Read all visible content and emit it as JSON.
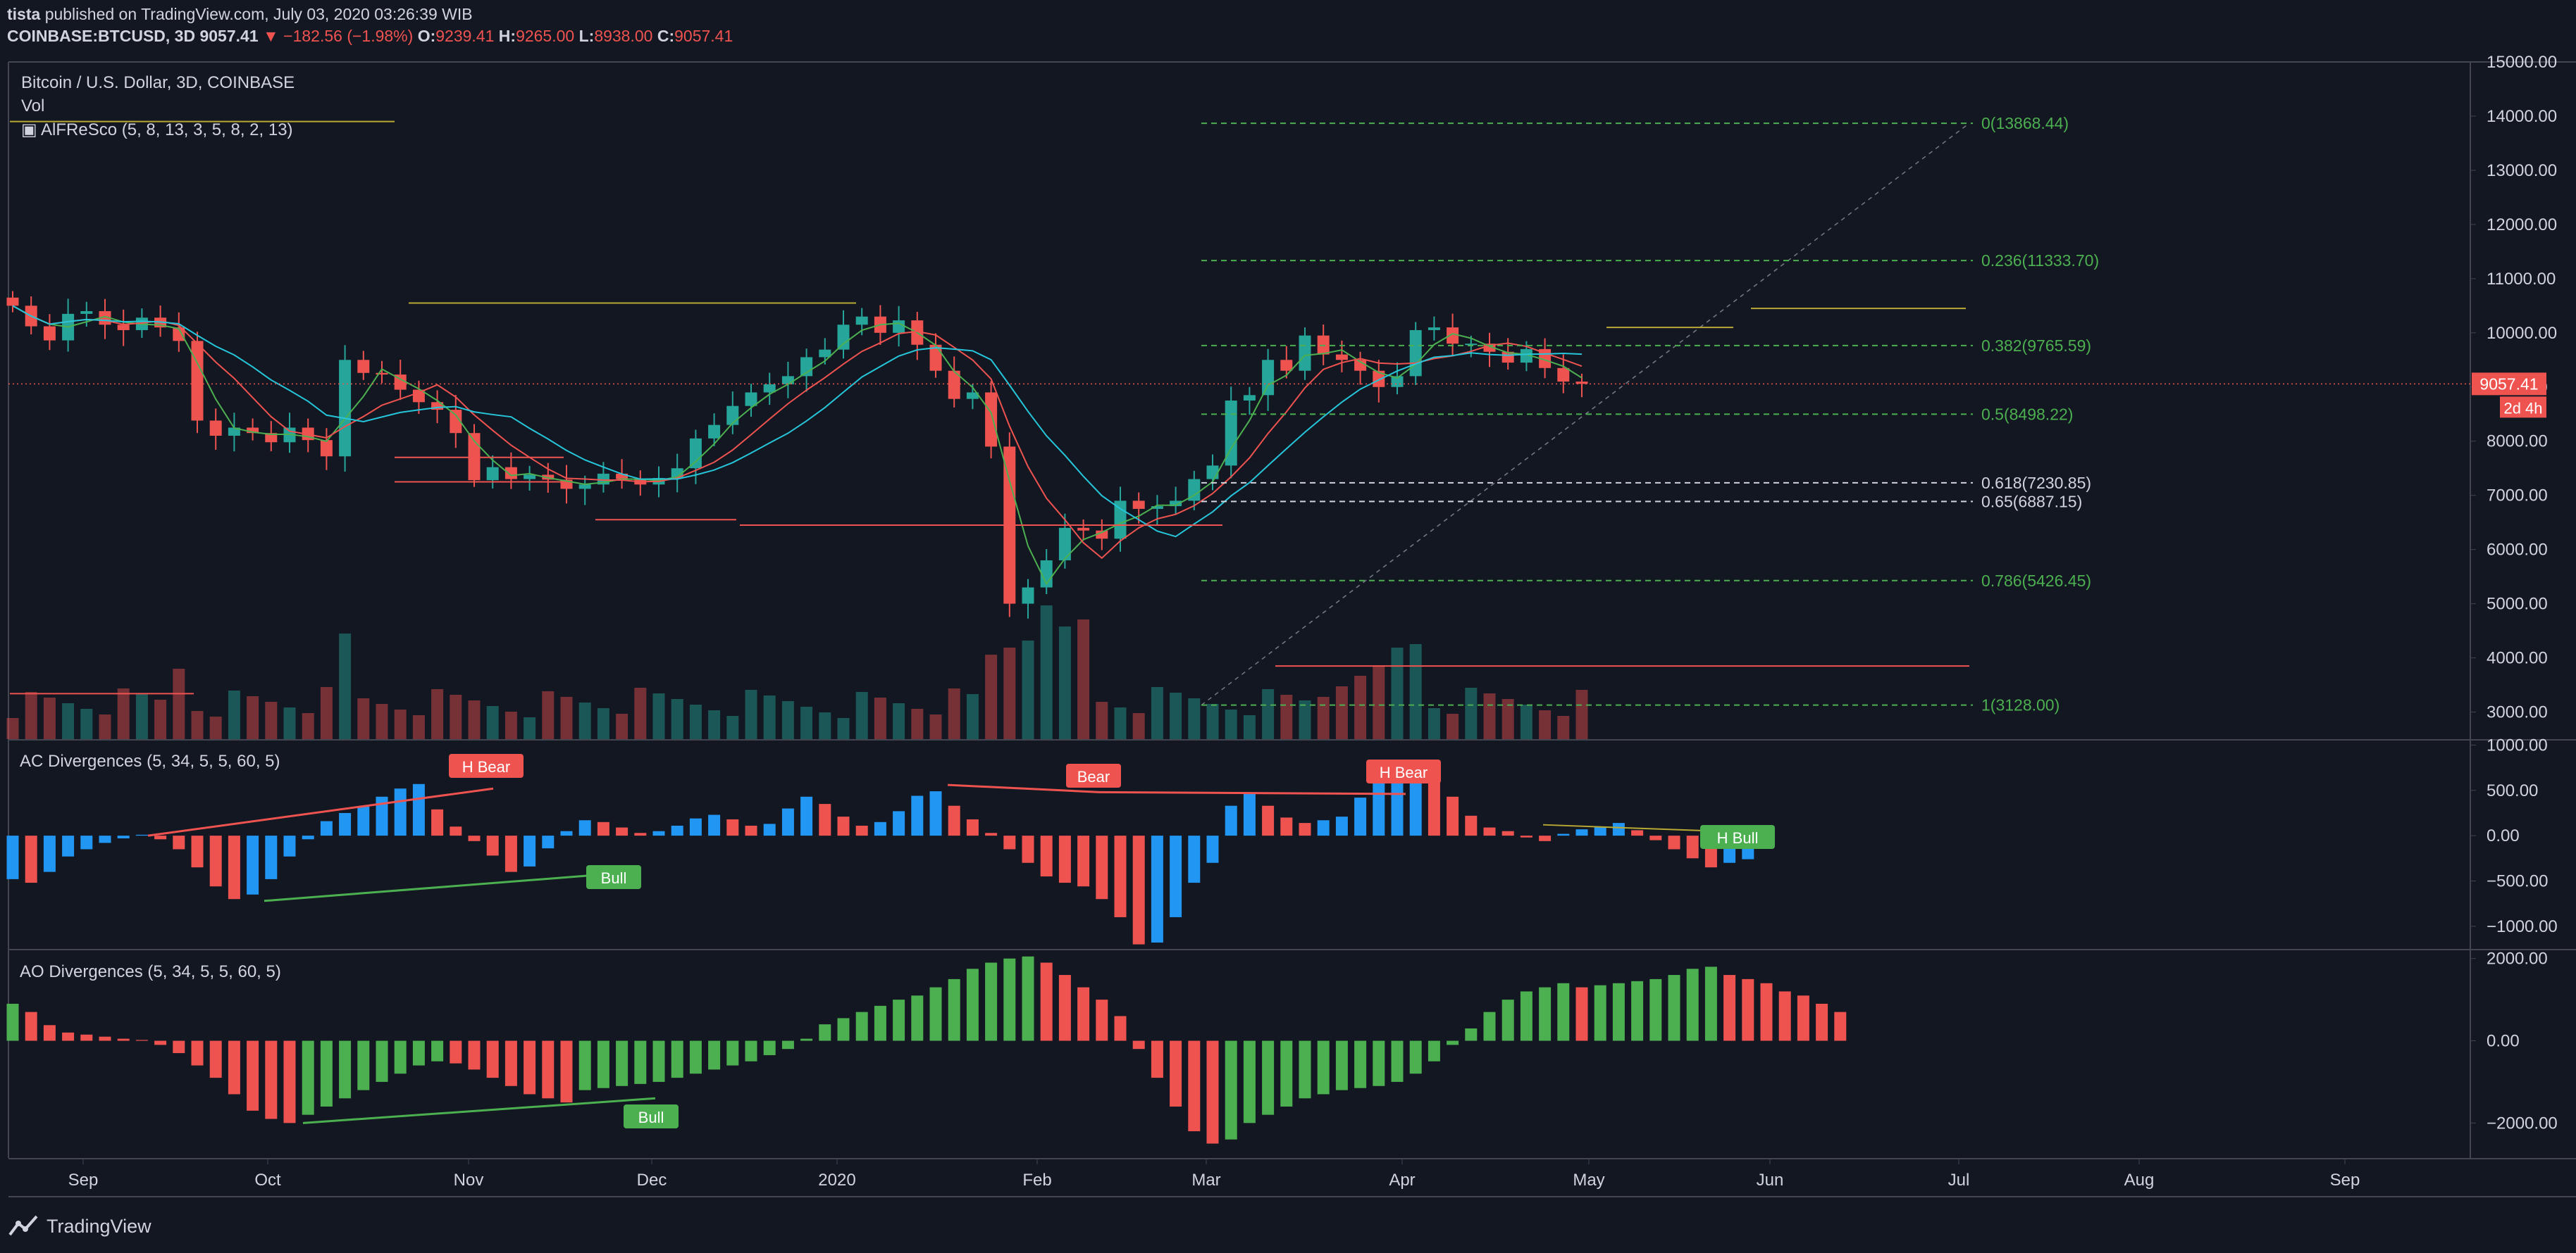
{
  "header": {
    "author": "tista",
    "published": "published on TradingView.com, July 03, 2020 03:26:39 WIB",
    "symbol": "COINBASE:BTCUSD, 3D",
    "last": "9057.41",
    "change": "−182.56 (−1.98%)",
    "o_label": "O:",
    "o": "9239.41",
    "h_label": "H:",
    "h": "9265.00",
    "l_label": "L:",
    "l": "8938.00",
    "c_label": "C:",
    "c": "9057.41"
  },
  "pane_labels": {
    "main_title": "Bitcoin / U.S. Dollar, 3D, COINBASE",
    "vol": "Vol",
    "alfresco": "AlFReSco (5, 8, 13, 3, 5, 8, 2, 13)",
    "ac": "AC Divergences (5, 34, 5, 5, 60, 5)",
    "ao": "AO Divergences (5, 34, 5, 5, 60, 5)"
  },
  "price_tag": {
    "value": "9057.41",
    "countdown": "2d 4h"
  },
  "footer": {
    "brand": "TradingView"
  },
  "colors": {
    "bg": "#131722",
    "up": "#26a69a",
    "down": "#ef5350",
    "green": "#4caf50",
    "blue": "#2196f3",
    "grid": "#2a2e39",
    "text": "#d1d4dc"
  },
  "chart_data": [
    {
      "type": "candlestick",
      "title": "Bitcoin / U.S. Dollar, 3D, COINBASE",
      "x_ticks": [
        "Sep",
        "Oct",
        "Nov",
        "Dec",
        "2020",
        "Feb",
        "Mar",
        "Apr",
        "May",
        "Jun",
        "Jul",
        "Aug",
        "Sep"
      ],
      "y_ticks": [
        "15000.00",
        "14000.00",
        "13000.00",
        "12000.00",
        "11000.00",
        "10000.00",
        "9000.00",
        "8000.00",
        "7000.00",
        "6000.00",
        "5000.00",
        "4000.00",
        "3000.00"
      ],
      "ylim": [
        2500,
        15000
      ],
      "closes": [
        10500,
        10120,
        9860,
        10350,
        10400,
        10150,
        10050,
        10280,
        10100,
        9850,
        8380,
        8100,
        8250,
        8150,
        7980,
        8250,
        8020,
        7720,
        9500,
        9260,
        9230,
        8950,
        8720,
        8580,
        8150,
        7280,
        7520,
        7300,
        7380,
        7290,
        7120,
        7200,
        7400,
        7300,
        7200,
        7320,
        7500,
        8050,
        8300,
        8650,
        8900,
        9050,
        9200,
        9550,
        9690,
        10150,
        10300,
        10000,
        10230,
        9780,
        9300,
        8780,
        8900,
        7900,
        5000,
        5300,
        5800,
        6400,
        6350,
        6200,
        6900,
        6750,
        6800,
        6900,
        7300,
        7550,
        8750,
        8850,
        9500,
        9300,
        9950,
        9600,
        9500,
        9300,
        9000,
        9200,
        10050,
        10100,
        9800,
        9800,
        9650,
        9450,
        9700,
        9350,
        9100,
        9057.41
      ],
      "fibonacci": [
        {
          "label": "0(13868.44)",
          "value": 13868.44
        },
        {
          "label": "0.236(11333.70)",
          "value": 11333.7
        },
        {
          "label": "0.382(9765.59)",
          "value": 9765.59
        },
        {
          "label": "0.5(8498.22)",
          "value": 8498.22
        },
        {
          "label": "0.618(7230.85)",
          "value": 7230.85
        },
        {
          "label": "0.65(6887.15)",
          "value": 6887.15
        },
        {
          "label": "0.786(5426.45)",
          "value": 5426.45
        },
        {
          "label": "1(3128.00)",
          "value": 3128.0
        }
      ]
    },
    {
      "type": "bar",
      "title": "AC Divergences (5, 34, 5, 5, 60, 5)",
      "y_ticks": [
        "1000.00",
        "500.00",
        "0.00",
        "−500.00",
        "−1000.00"
      ],
      "ylim": [
        -1250,
        1050
      ],
      "values": [
        -480,
        -520,
        -400,
        -230,
        -150,
        -80,
        -30,
        10,
        -40,
        -150,
        -350,
        -560,
        -700,
        -650,
        -480,
        -230,
        -40,
        160,
        250,
        320,
        430,
        520,
        570,
        290,
        100,
        -60,
        -220,
        -400,
        -340,
        -140,
        50,
        170,
        150,
        90,
        30,
        50,
        110,
        190,
        230,
        180,
        110,
        130,
        300,
        430,
        350,
        210,
        110,
        150,
        270,
        440,
        490,
        330,
        180,
        30,
        -150,
        -300,
        -450,
        -520,
        -560,
        -700,
        -900,
        -1200,
        -1180,
        -900,
        -520,
        -300,
        330,
        480,
        330,
        200,
        140,
        170,
        210,
        420,
        600,
        720,
        780,
        620,
        430,
        220,
        90,
        50,
        -20,
        -60,
        20,
        70,
        100,
        140,
        60,
        -50,
        -150,
        -250,
        -350,
        -300,
        -260
      ],
      "annotations": [
        "H Bear",
        "Bull",
        "Bear",
        "H Bear",
        "H Bull"
      ]
    },
    {
      "type": "bar",
      "title": "AO Divergences (5, 34, 5, 5, 60, 5)",
      "y_ticks": [
        "2000.00",
        "0.00",
        "−2000.00"
      ],
      "ylim": [
        -2850,
        2200
      ],
      "values": [
        900,
        700,
        380,
        200,
        150,
        100,
        50,
        20,
        -100,
        -300,
        -600,
        -900,
        -1300,
        -1700,
        -1900,
        -2000,
        -1800,
        -1600,
        -1400,
        -1200,
        -1000,
        -800,
        -600,
        -500,
        -550,
        -700,
        -900,
        -1100,
        -1300,
        -1400,
        -1500,
        -1200,
        -1150,
        -1100,
        -1050,
        -1000,
        -900,
        -800,
        -700,
        -600,
        -500,
        -350,
        -200,
        50,
        400,
        550,
        700,
        850,
        1000,
        1100,
        1300,
        1500,
        1750,
        1900,
        2000,
        2050,
        1900,
        1600,
        1300,
        1000,
        600,
        -200,
        -900,
        -1600,
        -2200,
        -2500,
        -2400,
        -2000,
        -1800,
        -1600,
        -1400,
        -1300,
        -1200,
        -1150,
        -1100,
        -1000,
        -800,
        -500,
        -100,
        300,
        700,
        1000,
        1200,
        1300,
        1400,
        1300,
        1350,
        1400,
        1450,
        1500,
        1600,
        1750,
        1800,
        1600,
        1500,
        1400,
        1200,
        1100,
        900,
        700
      ]
    }
  ]
}
